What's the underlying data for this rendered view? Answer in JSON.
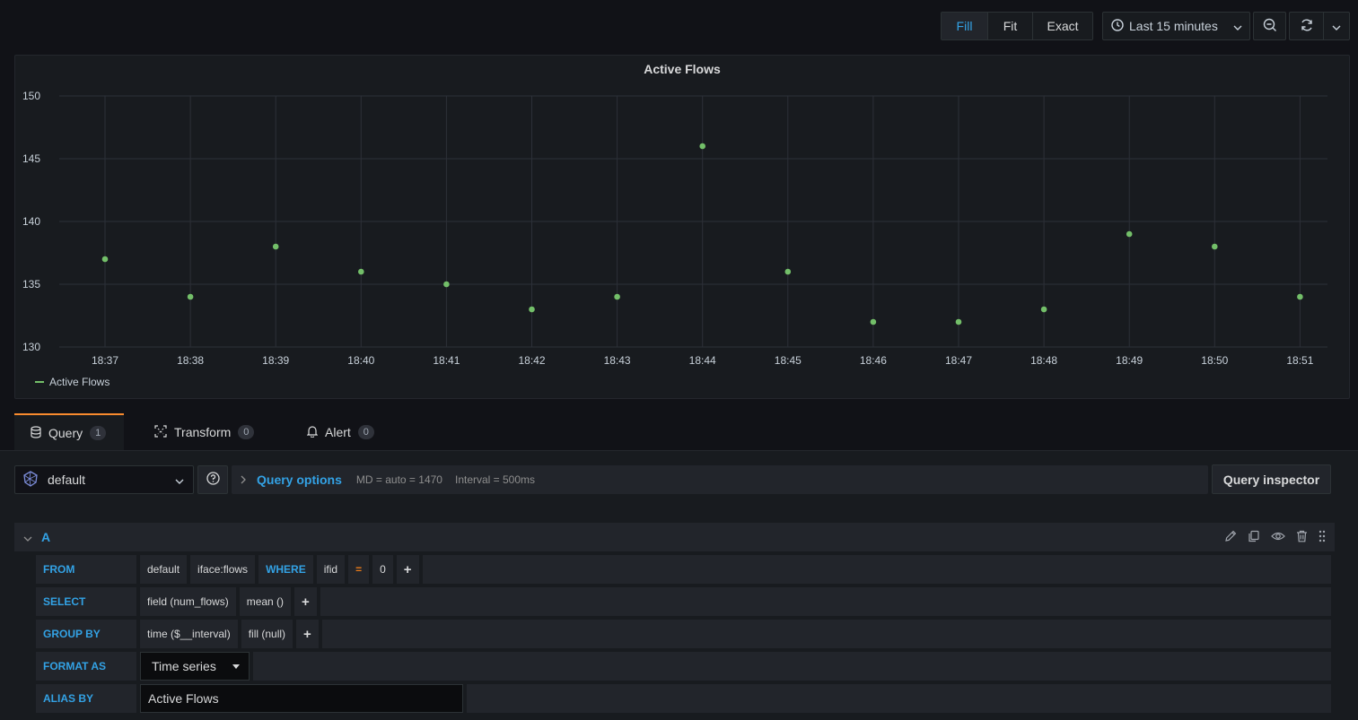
{
  "toolbar": {
    "zoom_modes": [
      {
        "label": "Fill",
        "active": true
      },
      {
        "label": "Fit",
        "active": false
      },
      {
        "label": "Exact",
        "active": false
      }
    ],
    "time_range": "Last 15 minutes",
    "icons": [
      "clock-icon",
      "chevron-down-icon",
      "zoom-out-icon",
      "refresh-icon",
      "chevron-down-icon"
    ]
  },
  "panel": {
    "title": "Active Flows",
    "legend": [
      {
        "name": "Active Flows",
        "color": "#73bf69"
      }
    ]
  },
  "chart_data": {
    "type": "scatter",
    "title": "Active Flows",
    "x": [
      "18:37",
      "18:38",
      "18:39",
      "18:40",
      "18:41",
      "18:42",
      "18:43",
      "18:44",
      "18:45",
      "18:46",
      "18:47",
      "18:48",
      "18:49",
      "18:50",
      "18:51"
    ],
    "series": [
      {
        "name": "Active Flows",
        "color": "#73bf69",
        "values": [
          137,
          134,
          138,
          136,
          135,
          133,
          134,
          146,
          136,
          132,
          132,
          133,
          139,
          138,
          134
        ]
      }
    ],
    "y_ticks": [
      130,
      135,
      140,
      145,
      150
    ],
    "ylim": [
      130,
      150
    ],
    "grid": true,
    "legend_position": "bottom-left"
  },
  "tabs": [
    {
      "label": "Query",
      "count": "1",
      "icon": "database-icon",
      "active": true
    },
    {
      "label": "Transform",
      "count": "0",
      "icon": "transform-icon",
      "active": false
    },
    {
      "label": "Alert",
      "count": "0",
      "icon": "bell-icon",
      "active": false
    }
  ],
  "datasource": {
    "name": "default"
  },
  "query_options": {
    "title": "Query options",
    "md": "MD = auto = 1470",
    "interval": "Interval = 500ms"
  },
  "query_inspector": "Query inspector",
  "query": {
    "ref_id": "A",
    "from": {
      "label": "FROM",
      "policy": "default",
      "measurement": "iface:flows",
      "where_kw": "WHERE",
      "tag": "ifid",
      "op": "=",
      "value": "0",
      "plus": "+"
    },
    "select": {
      "label": "SELECT",
      "field": "field (num_flows)",
      "func": "mean ()",
      "plus": "+"
    },
    "group_by": {
      "label": "GROUP BY",
      "time": "time ($__interval)",
      "fill": "fill (null)",
      "plus": "+"
    },
    "format_as": {
      "label": "FORMAT AS",
      "value": "Time series"
    },
    "alias_by": {
      "label": "ALIAS BY",
      "value": "Active Flows"
    }
  }
}
